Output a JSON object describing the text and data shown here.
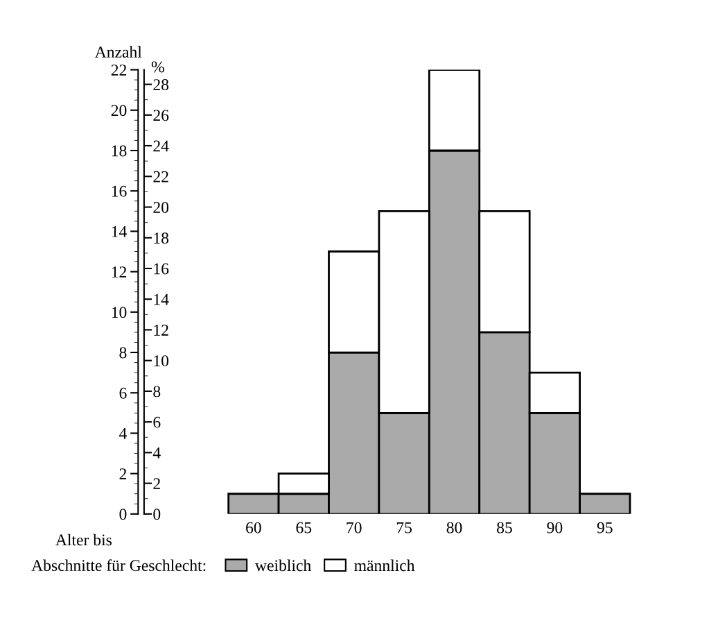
{
  "chart_data": {
    "type": "bar",
    "stacked": true,
    "categories": [
      "60",
      "65",
      "70",
      "75",
      "80",
      "85",
      "90",
      "95"
    ],
    "series": [
      {
        "name": "weiblich",
        "color": "#aaaaaa",
        "values": [
          1,
          1,
          8,
          5,
          18,
          9,
          5,
          1
        ]
      },
      {
        "name": "männlich",
        "color": "#ffffff",
        "values": [
          0,
          1,
          5,
          10,
          4,
          6,
          2,
          0
        ]
      }
    ],
    "xlabel": "Alter bis",
    "ylabel": "Anzahl",
    "y2label": "%",
    "ylim": [
      0,
      22
    ],
    "yticks": [
      0,
      2,
      4,
      6,
      8,
      10,
      12,
      14,
      16,
      18,
      20,
      22
    ],
    "y2lim": [
      0,
      28.95
    ],
    "y2ticks": [
      0,
      2,
      4,
      6,
      8,
      10,
      12,
      14,
      16,
      18,
      20,
      22,
      24,
      26,
      28
    ],
    "legend_title": "Abschnitte für Geschlecht:",
    "legend": "bottom",
    "grid": false
  }
}
